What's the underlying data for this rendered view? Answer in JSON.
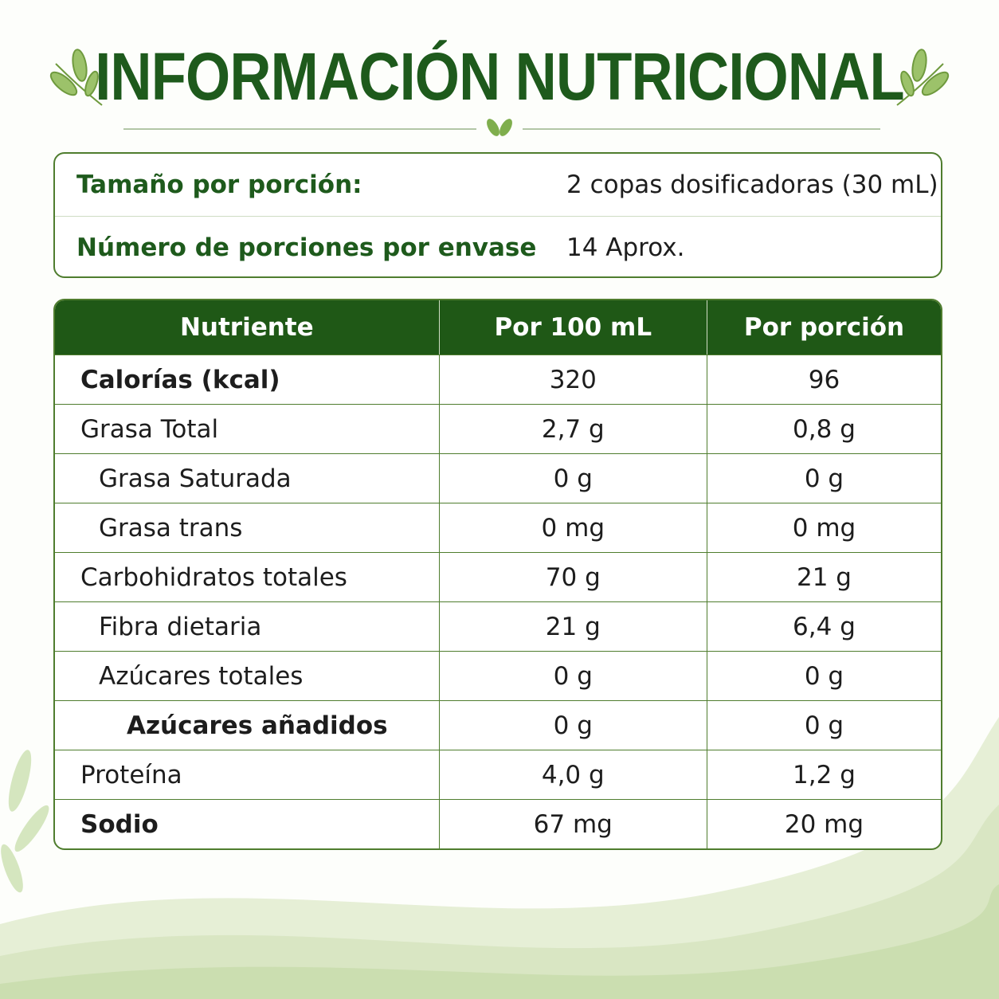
{
  "header": {
    "title": "INFORMACIÓN NUTRICIONAL"
  },
  "serving": {
    "rows": [
      [
        "Tamaño por porción:",
        "2 copas dosificadoras (30 mL)"
      ],
      [
        "Número de porciones por envase",
        "14 Aprox."
      ]
    ]
  },
  "table": {
    "header": [
      "Nutriente",
      "Por 100 mL",
      "Por porción"
    ],
    "rows": [
      [
        "Calorías (kcal)",
        "320",
        "96"
      ],
      [
        "Grasa Total",
        "2,7 g",
        "0,8 g"
      ],
      [
        "Grasa Saturada",
        "0 g",
        "0 g"
      ],
      [
        "Grasa trans",
        "0 mg",
        "0 mg"
      ],
      [
        "Carbohidratos totales",
        "70 g",
        "21 g"
      ],
      [
        "Fibra dietaria",
        "21 g",
        "6,4 g"
      ],
      [
        "Azúcares totales",
        "0 g",
        "0 g"
      ],
      [
        "Azúcares añadidos",
        "0 g",
        "0 g"
      ],
      [
        "Proteína",
        "4,0 g",
        "1,2 g"
      ],
      [
        "Sodio",
        "67 mg",
        "20 mg"
      ]
    ]
  }
}
